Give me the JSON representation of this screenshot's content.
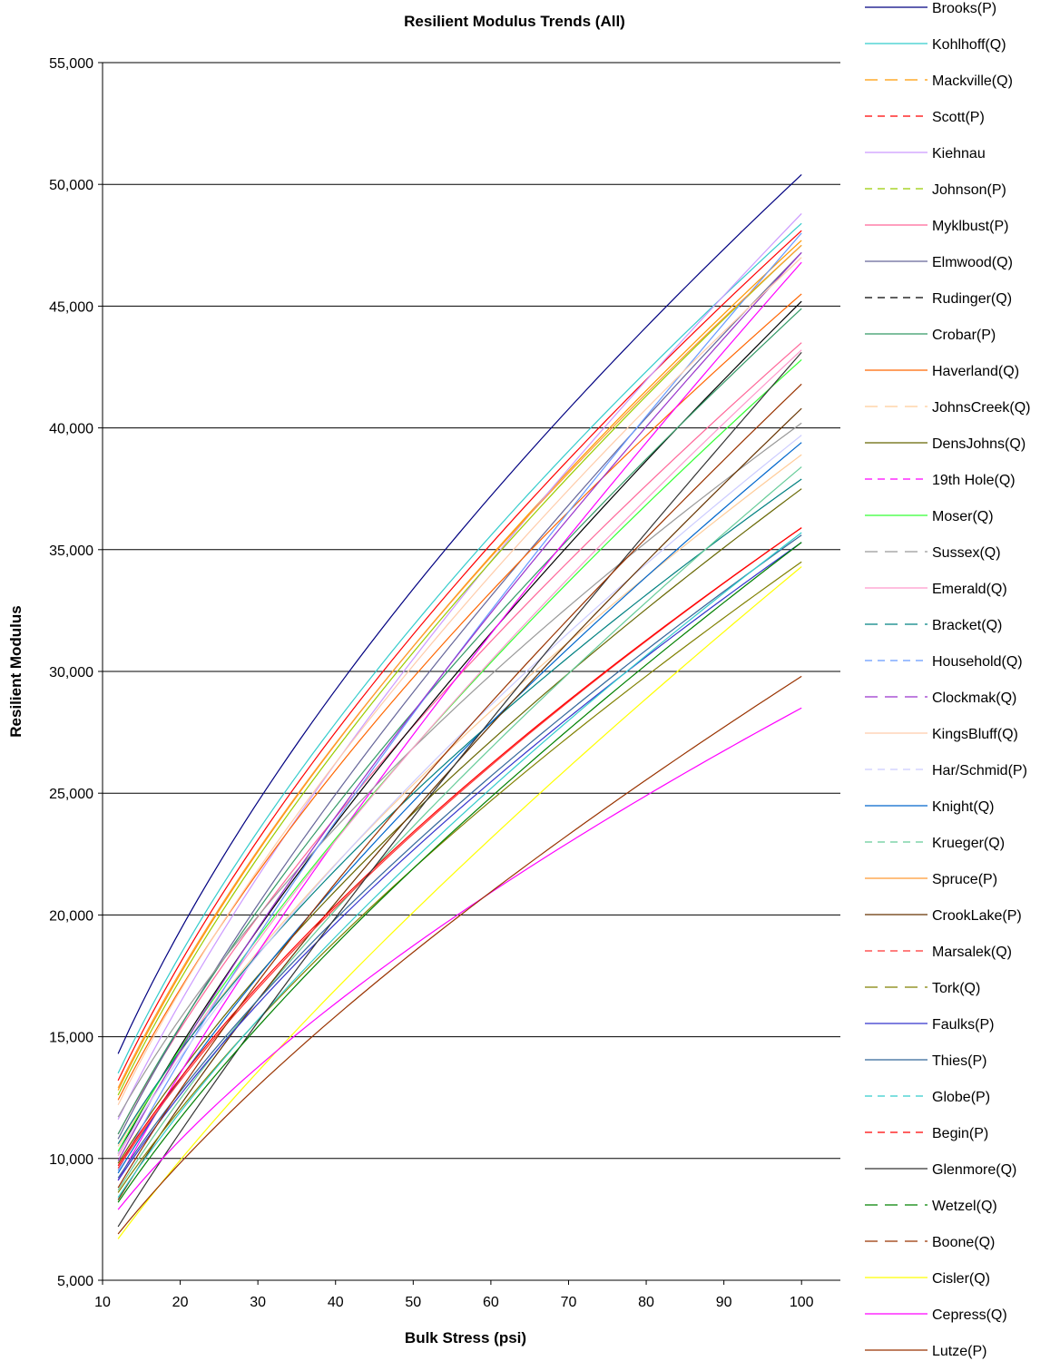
{
  "chart_data": {
    "type": "line",
    "title": "Resilient Modulus Trends (All)",
    "xlabel": "Bulk Stress (psi)",
    "ylabel": "Resilient Modulus",
    "xlim": [
      10,
      105
    ],
    "ylim": [
      5000,
      55000
    ],
    "x_ticks": [
      "10",
      "20",
      "30",
      "40",
      "50",
      "60",
      "70",
      "80",
      "90",
      "100"
    ],
    "y_ticks": [
      "5,000",
      "10,000",
      "15,000",
      "20,000",
      "25,000",
      "30,000",
      "35,000",
      "40,000",
      "45,000",
      "50,000",
      "55,000"
    ],
    "grid": "horizontal major gridlines",
    "legend_position": "right",
    "x_range": [
      12,
      100
    ],
    "series": [
      {
        "name": "Brooks(P)",
        "color": "#000080",
        "dash": "solid",
        "y_at_x12": 14300,
        "y_at_x100": 50400
      },
      {
        "name": "Kohlhoff(Q)",
        "color": "#33CCCC",
        "dash": "solid",
        "y_at_x12": 13500,
        "y_at_x100": 48400
      },
      {
        "name": "Mackville(Q)",
        "color": "#FF9900",
        "dash": "long-dash",
        "y_at_x12": 12800,
        "y_at_x100": 47700
      },
      {
        "name": "Scott(P)",
        "color": "#FF0000",
        "dash": "dash",
        "y_at_x12": 13200,
        "y_at_x100": 48100
      },
      {
        "name": "Kiehnau",
        "color": "#CC99FF",
        "dash": "solid",
        "y_at_x12": 11600,
        "y_at_x100": 48800
      },
      {
        "name": "Johnson(P)",
        "color": "#99CC00",
        "dash": "dash",
        "y_at_x12": 12600,
        "y_at_x100": 47500
      },
      {
        "name": "Myklbust(P)",
        "color": "#FF6699",
        "dash": "solid",
        "y_at_x12": 11000,
        "y_at_x100": 43500
      },
      {
        "name": "Elmwood(Q)",
        "color": "#666699",
        "dash": "solid",
        "y_at_x12": 10800,
        "y_at_x100": 47200
      },
      {
        "name": "Rudinger(Q)",
        "color": "#000000",
        "dash": "dash",
        "y_at_x12": 10200,
        "y_at_x100": 45200
      },
      {
        "name": "Crobar(P)",
        "color": "#339966",
        "dash": "solid",
        "y_at_x12": 11000,
        "y_at_x100": 44900
      },
      {
        "name": "Haverland(Q)",
        "color": "#FF6600",
        "dash": "solid",
        "y_at_x12": 12400,
        "y_at_x100": 45500
      },
      {
        "name": "JohnsCreek(Q)",
        "color": "#FFCC99",
        "dash": "long-dash",
        "y_at_x12": 10500,
        "y_at_x100": 38900
      },
      {
        "name": "DensJohns(Q)",
        "color": "#666600",
        "dash": "solid",
        "y_at_x12": 9800,
        "y_at_x100": 37500
      },
      {
        "name": "19th Hole(Q)",
        "color": "#FF00FF",
        "dash": "dash",
        "y_at_x12": 9100,
        "y_at_x100": 46800
      },
      {
        "name": "Moser(Q)",
        "color": "#33FF33",
        "dash": "solid",
        "y_at_x12": 10300,
        "y_at_x100": 42800
      },
      {
        "name": "Sussex(Q)",
        "color": "#999999",
        "dash": "long-dash",
        "y_at_x12": 11700,
        "y_at_x100": 40200
      },
      {
        "name": "Emerald(Q)",
        "color": "#FF99CC",
        "dash": "solid",
        "y_at_x12": 10100,
        "y_at_x100": 43200
      },
      {
        "name": "Bracket(Q)",
        "color": "#008080",
        "dash": "long-dash",
        "y_at_x12": 10600,
        "y_at_x100": 37900
      },
      {
        "name": "Household(Q)",
        "color": "#6699FF",
        "dash": "dash",
        "y_at_x12": 9500,
        "y_at_x100": 48000
      },
      {
        "name": "Clockmak(Q)",
        "color": "#9933CC",
        "dash": "long-dash",
        "y_at_x12": 9900,
        "y_at_x100": 47200
      },
      {
        "name": "KingsBluff(Q)",
        "color": "#FFCCAA",
        "dash": "solid",
        "y_at_x12": 12200,
        "y_at_x100": 47000
      },
      {
        "name": "Har/Schmid(P)",
        "color": "#CCCCFF",
        "dash": "dash",
        "y_at_x12": 10200,
        "y_at_x100": 39700
      },
      {
        "name": "Knight(Q)",
        "color": "#0066CC",
        "dash": "solid",
        "y_at_x12": 9400,
        "y_at_x100": 39400
      },
      {
        "name": "Krueger(Q)",
        "color": "#66CC99",
        "dash": "dash",
        "y_at_x12": 8700,
        "y_at_x100": 38400
      },
      {
        "name": "Spruce(P)",
        "color": "#FF9933",
        "dash": "solid",
        "y_at_x12": 12900,
        "y_at_x100": 47500
      },
      {
        "name": "CrookLake(P)",
        "color": "#663300",
        "dash": "solid",
        "y_at_x12": 8300,
        "y_at_x100": 40800
      },
      {
        "name": "Marsalek(Q)",
        "color": "#FF3333",
        "dash": "dash",
        "y_at_x12": 9600,
        "y_at_x100": 35900
      },
      {
        "name": "Tork(Q)",
        "color": "#808000",
        "dash": "long-dash",
        "y_at_x12": 8600,
        "y_at_x100": 34500
      },
      {
        "name": "Faulks(P)",
        "color": "#3333CC",
        "dash": "solid",
        "y_at_x12": 9100,
        "y_at_x100": 35300
      },
      {
        "name": "Thies(P)",
        "color": "#336699",
        "dash": "solid",
        "y_at_x12": 9200,
        "y_at_x100": 35600
      },
      {
        "name": "Globe(P)",
        "color": "#33CCCC",
        "dash": "dash",
        "y_at_x12": 8400,
        "y_at_x100": 35700
      },
      {
        "name": "Begin(P)",
        "color": "#FF0000",
        "dash": "dash",
        "y_at_x12": 9700,
        "y_at_x100": 35900
      },
      {
        "name": "Glenmore(Q)",
        "color": "#333333",
        "dash": "solid",
        "y_at_x12": 7200,
        "y_at_x100": 43100
      },
      {
        "name": "Wetzel(Q)",
        "color": "#008000",
        "dash": "long-dash",
        "y_at_x12": 8200,
        "y_at_x100": 35300
      },
      {
        "name": "Boone(Q)",
        "color": "#993300",
        "dash": "long-dash",
        "y_at_x12": 8800,
        "y_at_x100": 41800
      },
      {
        "name": "Cisler(Q)",
        "color": "#FFFF00",
        "dash": "solid",
        "y_at_x12": 6700,
        "y_at_x100": 34300
      },
      {
        "name": "Cepress(Q)",
        "color": "#FF00FF",
        "dash": "solid",
        "y_at_x12": 7900,
        "y_at_x100": 28500
      },
      {
        "name": "Lutze(P)",
        "color": "#993300",
        "dash": "solid",
        "y_at_x12": 6900,
        "y_at_x100": 29800
      }
    ]
  }
}
